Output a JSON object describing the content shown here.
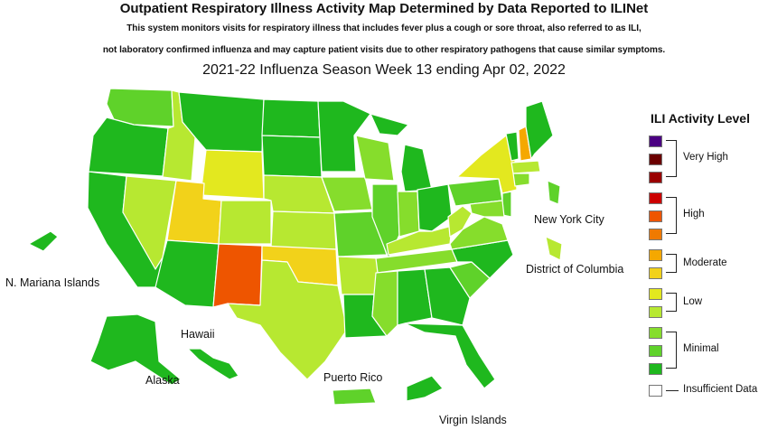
{
  "header": {
    "title": "Outpatient Respiratory Illness Activity Map Determined by Data Reported to ILINet",
    "subtitle_line1": "This system monitors visits for respiratory illness that includes fever plus a cough or sore throat, also referred to as ILI,",
    "subtitle_line2": "not laboratory confirmed influenza and may capture patient visits due to other respiratory pathogens that cause similar symptoms.",
    "season": "2021-22 Influenza Season Week 13 ending Apr 02, 2022"
  },
  "labels": {
    "nyc": "New York City",
    "dc": "District of Columbia",
    "mariana": "N. Mariana Islands",
    "hawaii": "Hawaii",
    "alaska": "Alaska",
    "puerto_rico": "Puerto Rico",
    "virgin_islands": "Virgin Islands"
  },
  "legend": {
    "title": "ILI Activity Level",
    "colors": [
      "#4b0082",
      "#6b0000",
      "#9a0000",
      "#cc0000",
      "#ee5500",
      "#f07a00",
      "#f5a800",
      "#f2d21a",
      "#e3e81f",
      "#b7e831",
      "#86dd2c",
      "#5fd22a",
      "#1fb81e",
      "#ffffff"
    ],
    "groups": {
      "very_high": "Very High",
      "high": "High",
      "moderate": "Moderate",
      "low": "Low",
      "minimal": "Minimal",
      "insufficient": "Insufficient Data"
    }
  },
  "activity_colors": {
    "WA": "#5fd22a",
    "OR": "#1fb81e",
    "CA": "#1fb81e",
    "NV": "#b7e831",
    "ID": "#b7e831",
    "MT": "#1fb81e",
    "WY": "#e3e81f",
    "UT": "#f2d21a",
    "AZ": "#1fb81e",
    "CO": "#b7e831",
    "NM": "#ee5500",
    "TX": "#b7e831",
    "OK": "#f2d21a",
    "KS": "#b7e831",
    "NE": "#b7e831",
    "SD": "#1fb81e",
    "ND": "#1fb81e",
    "MN": "#1fb81e",
    "IA": "#86dd2c",
    "MO": "#5fd22a",
    "AR": "#b7e831",
    "LA": "#1fb81e",
    "WI": "#86dd2c",
    "IL": "#5fd22a",
    "MI": "#1fb81e",
    "IN": "#86dd2c",
    "OH": "#1fb81e",
    "KY": "#b7e831",
    "TN": "#86dd2c",
    "MS": "#86dd2c",
    "AL": "#1fb81e",
    "GA": "#1fb81e",
    "FL": "#1fb81e",
    "SC": "#5fd22a",
    "NC": "#1fb81e",
    "VA": "#86dd2c",
    "WV": "#b7e831",
    "PA": "#5fd22a",
    "NY": "#e3e81f",
    "VT": "#1fb81e",
    "NH": "#f5a800",
    "ME": "#1fb81e",
    "MA": "#b7e831",
    "CT": "#86dd2c",
    "NJ": "#5fd22a",
    "MD": "#86dd2c",
    "AK": "#1fb81e",
    "HI": "#1fb81e",
    "MP": "#1fb81e",
    "PR": "#5fd22a",
    "VI": "#1fb81e",
    "NYC": "#5fd22a",
    "DC": "#b7e831"
  }
}
